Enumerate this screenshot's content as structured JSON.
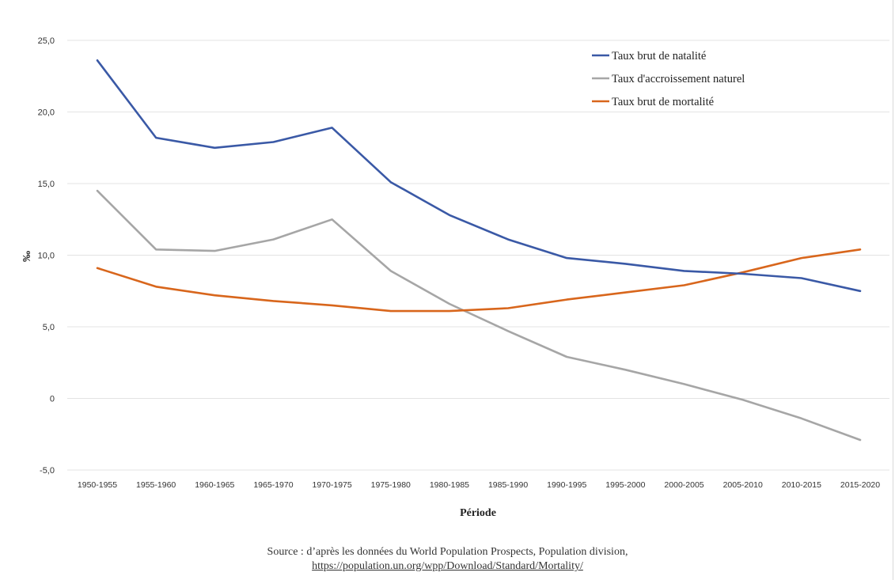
{
  "chart_data": {
    "type": "line",
    "categories": [
      "1950-1955",
      "1955-1960",
      "1960-1965",
      "1965-1970",
      "1970-1975",
      "1975-1980",
      "1980-1985",
      "1985-1990",
      "1990-1995",
      "1995-2000",
      "2000-2005",
      "2005-2010",
      "2010-2015",
      "2015-2020"
    ],
    "series": [
      {
        "name": "Taux brut de natalité",
        "color": "#3a59a6",
        "values": [
          23.6,
          18.2,
          17.5,
          17.9,
          18.9,
          15.1,
          12.8,
          11.1,
          9.8,
          9.4,
          8.9,
          8.7,
          8.4,
          7.5
        ]
      },
      {
        "name": "Taux d'accroissement naturel",
        "color": "#a6a6a6",
        "values": [
          14.5,
          10.4,
          10.3,
          11.1,
          12.5,
          8.9,
          6.6,
          4.7,
          2.9,
          2.0,
          1.0,
          -0.1,
          -1.4,
          -2.9
        ]
      },
      {
        "name": "Taux brut de mortalité",
        "color": "#d8661c",
        "values": [
          9.1,
          7.8,
          7.2,
          6.8,
          6.5,
          6.1,
          6.1,
          6.3,
          6.9,
          7.4,
          7.9,
          8.8,
          9.8,
          10.4
        ]
      }
    ],
    "xlabel": "Période",
    "ylabel": "‰",
    "ylim": [
      -5,
      25
    ],
    "yticks": [
      -5,
      0,
      5,
      10,
      15,
      20,
      25
    ],
    "ytick_labels": [
      "-5,0",
      "0",
      "5,0",
      "10,0",
      "15,0",
      "20,0",
      "25,0"
    ],
    "grid": true,
    "legend_position": "top-right"
  },
  "source": {
    "line1": "Source : d’après les données du World Population Prospects, Population division,",
    "line2": "https://population.un.org/wpp/Download/Standard/Mortality/"
  }
}
